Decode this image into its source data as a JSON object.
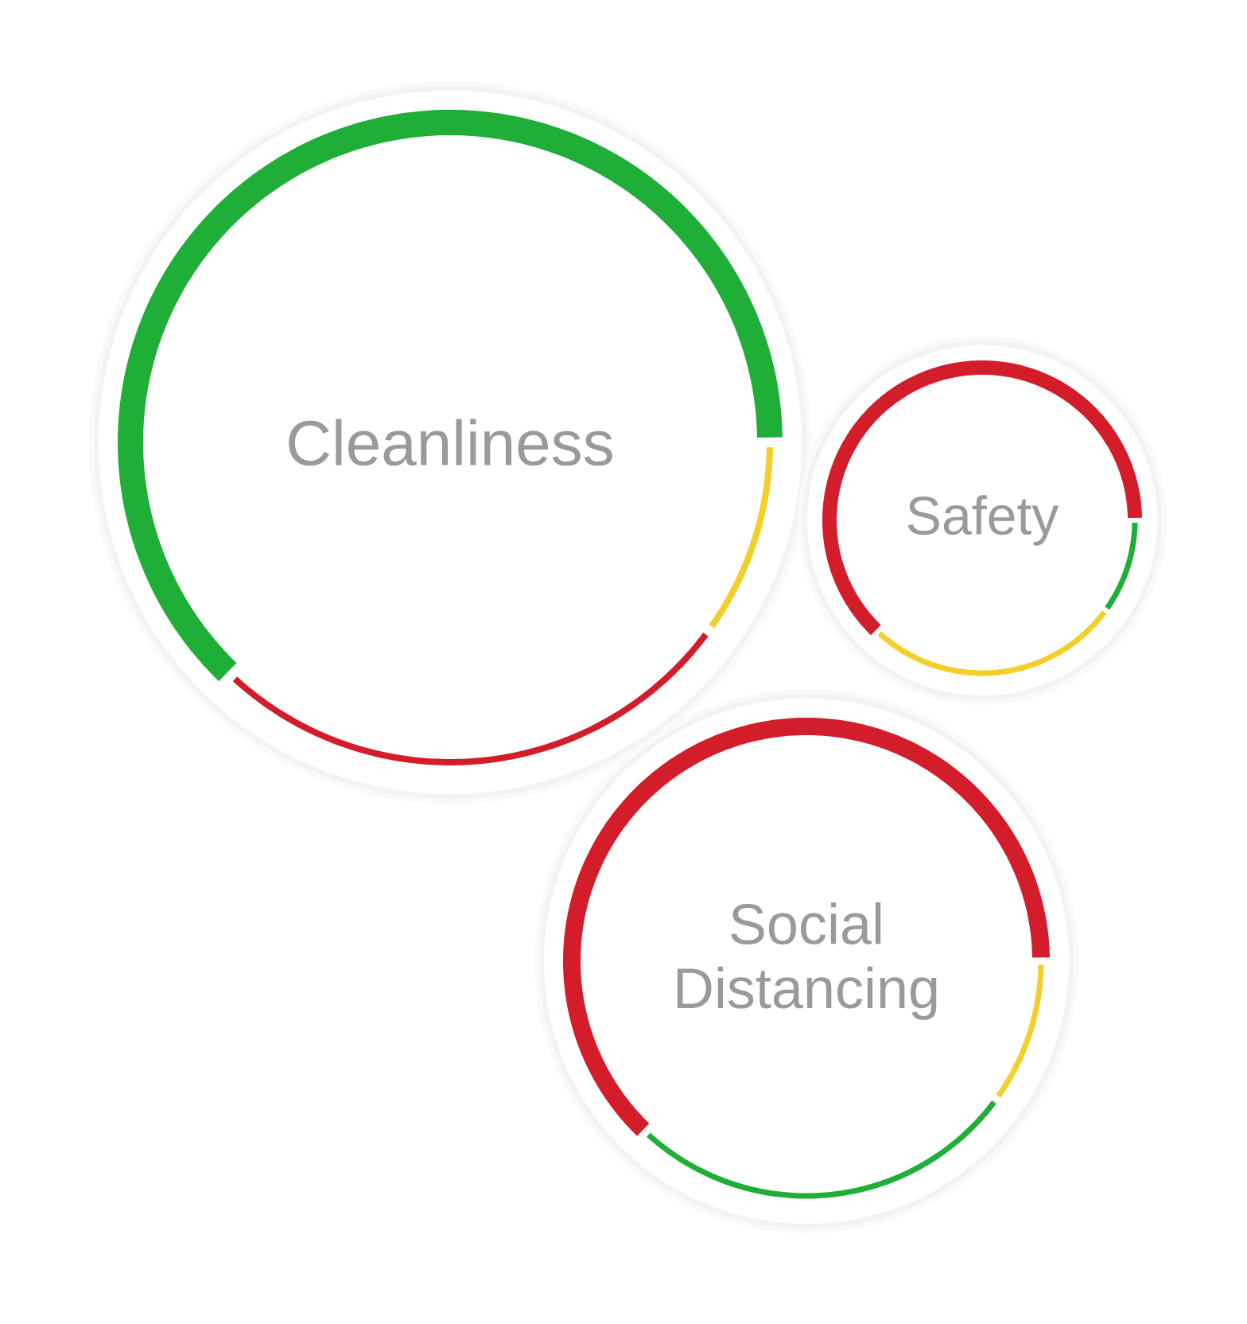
{
  "chart_data": [
    {
      "type": "donut",
      "title": "Cleanliness",
      "categories": [
        null,
        null,
        null
      ],
      "values": [
        63,
        27,
        10
      ],
      "colors": [
        "#1fae37",
        "#d31d2a",
        "#f4cf2a"
      ]
    },
    {
      "type": "donut",
      "title": "Safety",
      "categories": [
        null,
        null,
        null
      ],
      "values": [
        63,
        27,
        10
      ],
      "colors": [
        "#d31d2a",
        "#f4cf2a",
        "#1fae37"
      ]
    },
    {
      "type": "donut",
      "title": "Social Distancing",
      "categories": [
        null,
        null,
        null
      ],
      "values": [
        63,
        27,
        10
      ],
      "colors": [
        "#d31d2a",
        "#1fae37",
        "#f4cf2a"
      ]
    }
  ]
}
